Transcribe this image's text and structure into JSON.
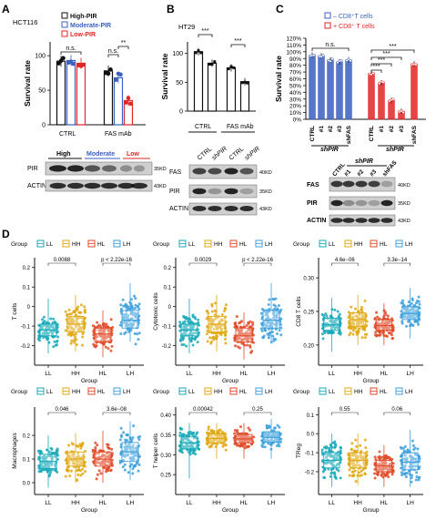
{
  "panels": [
    {
      "letter": "A",
      "cell_line": "HCT116",
      "legend": [
        {
          "label": "High-PIR",
          "color": "#111111"
        },
        {
          "label": "Moderate-PIR",
          "color": "#3a5fbf"
        },
        {
          "label": "Low-PIR",
          "color": "#e02626"
        }
      ],
      "groups": [
        "CTRL",
        "FAS mAb"
      ],
      "sig": [
        "n.s.",
        "n.s.",
        "**"
      ],
      "blot_header": [
        "High",
        "Moderate",
        "Low"
      ],
      "blot_rows": [
        "PIR",
        "ACTIN"
      ],
      "blot_kd": [
        "35KD",
        "43KD"
      ]
    },
    {
      "letter": "B",
      "cell_line": "HT29",
      "groups": [
        "CTRL",
        "FAS mAb"
      ],
      "sig": [
        "***",
        "***"
      ],
      "blot_lanes": [
        "CTRL",
        "shPIR",
        "CTRL",
        "shPIR"
      ],
      "blot_rows": [
        "FAS",
        "PIR",
        "ACTIN"
      ],
      "blot_kd": [
        "40KD",
        "35KD",
        "43KD"
      ]
    },
    {
      "letter": "C",
      "legend": [
        {
          "label": "– CD8⁺T cells",
          "color": "#3a5fbf"
        },
        {
          "label": "+ CD8⁺ T cells",
          "color": "#e02626"
        }
      ],
      "lanes": [
        "CTRL",
        "#1",
        "#2",
        "#3",
        "shFAS"
      ],
      "lane_group": "shPIR",
      "sig": [
        "n.s.",
        "***",
        "***",
        "***",
        "***"
      ],
      "blot_lanes": [
        "CTRL",
        "#1",
        "#2",
        "#3",
        "shFAS"
      ],
      "blot_rows": [
        "FAS",
        "PIR",
        "ACTIN"
      ],
      "blot_kd": [
        "40KD",
        "35KD",
        "43KD"
      ]
    },
    {
      "letter": "D",
      "group_title": "Group",
      "groups": [
        "LL",
        "HH",
        "HL",
        "LH"
      ],
      "xlabel": "Group"
    }
  ],
  "chart_data": [
    {
      "id": "A",
      "type": "bar",
      "ylabel": "Survival rate",
      "ylim": [
        0,
        120
      ],
      "yticks": [
        0,
        50,
        100
      ],
      "categories": [
        "CTRL",
        "FAS mAb"
      ],
      "series": [
        {
          "name": "High-PIR",
          "values": [
            92,
            78
          ],
          "color": "#111111"
        },
        {
          "name": "Moderate-PIR",
          "values": [
            93,
            68
          ],
          "color": "#3a5fbf"
        },
        {
          "name": "Low-PIR",
          "values": [
            89,
            35
          ],
          "color": "#e02626"
        }
      ]
    },
    {
      "id": "B",
      "type": "bar",
      "ylabel": "Survival rate",
      "ylim": [
        0,
        120
      ],
      "yticks": [
        0,
        50,
        100
      ],
      "categories": [
        "CTRL",
        "shPIR",
        "CTRL",
        "shPIR"
      ],
      "values": [
        103,
        83,
        75,
        51
      ],
      "color": "#111111"
    },
    {
      "id": "C",
      "type": "bar",
      "ylabel": "Survival rate",
      "ylim": [
        0,
        120
      ],
      "yticks": [
        0,
        10,
        20,
        30,
        40,
        50,
        60,
        70,
        80,
        90,
        100,
        110,
        120
      ],
      "ytick_labels": [
        "0%",
        "10%",
        "20%",
        "30%",
        "40%",
        "50%",
        "60%",
        "70%",
        "80%",
        "90%",
        "100%",
        "110%",
        "120%"
      ],
      "categories": [
        "CTRL",
        "#1",
        "#2",
        "#3",
        "shFAS"
      ],
      "series": [
        {
          "name": "– CD8⁺T cells",
          "values": [
            95,
            94,
            88,
            85,
            88
          ],
          "color": "#3a5fbf"
        },
        {
          "name": "+ CD8⁺ T cells",
          "values": [
            68,
            54,
            28,
            12,
            82
          ],
          "color": "#e02626"
        }
      ]
    },
    {
      "id": "D1",
      "type": "box",
      "ylabel": "T cells",
      "ylim": [
        -0.3,
        0.25
      ],
      "yticks": [
        -0.2,
        -0.1,
        0.0,
        0.1,
        0.2
      ],
      "ytick_labels": [
        "-0.2",
        "-0.1",
        "0",
        "0.1",
        "0.2"
      ],
      "boxes": [
        {
          "group": "LL",
          "q1": -0.15,
          "median": -0.12,
          "q3": -0.09,
          "lo": -0.24,
          "hi": 0.04
        },
        {
          "group": "HH",
          "q1": -0.13,
          "median": -0.09,
          "q3": -0.05,
          "lo": -0.23,
          "hi": 0.06
        },
        {
          "group": "HL",
          "q1": -0.18,
          "median": -0.14,
          "q3": -0.11,
          "lo": -0.26,
          "hi": -0.02
        },
        {
          "group": "LH",
          "q1": -0.11,
          "median": -0.07,
          "q3": -0.02,
          "lo": -0.18,
          "hi": 0.12
        }
      ],
      "annotations": [
        {
          "from": "LL",
          "to": "HH",
          "label": "0.0088"
        },
        {
          "from": "HL",
          "to": "LH",
          "label": "p < 2.22e-16"
        }
      ]
    },
    {
      "id": "D2",
      "type": "box",
      "ylabel": "Cytotoxic cells",
      "ylim": [
        -0.3,
        0.25
      ],
      "yticks": [
        -0.2,
        -0.1,
        0.0,
        0.1,
        0.2
      ],
      "ytick_labels": [
        "-0.2",
        "-0.1",
        "0",
        "0.1",
        "0.2"
      ],
      "boxes": [
        {
          "group": "LL",
          "q1": -0.15,
          "median": -0.12,
          "q3": -0.09,
          "lo": -0.24,
          "hi": 0.04
        },
        {
          "group": "HH",
          "q1": -0.13,
          "median": -0.09,
          "q3": -0.05,
          "lo": -0.23,
          "hi": 0.06
        },
        {
          "group": "HL",
          "q1": -0.18,
          "median": -0.15,
          "q3": -0.11,
          "lo": -0.27,
          "hi": -0.03
        },
        {
          "group": "LH",
          "q1": -0.11,
          "median": -0.07,
          "q3": -0.02,
          "lo": -0.18,
          "hi": 0.12
        }
      ],
      "annotations": [
        {
          "from": "LL",
          "to": "HH",
          "label": "0.0029"
        },
        {
          "from": "HL",
          "to": "LH",
          "label": "p < 2.22e-16"
        }
      ]
    },
    {
      "id": "D3",
      "type": "box",
      "ylabel": "CD8 T cells",
      "ylim": [
        0.17,
        0.33
      ],
      "yticks": [
        0.2,
        0.25,
        0.3
      ],
      "ytick_labels": [
        "0.20",
        "0.25",
        "0.30"
      ],
      "boxes": [
        {
          "group": "LL",
          "q1": 0.222,
          "median": 0.23,
          "q3": 0.24,
          "lo": 0.19,
          "hi": 0.27
        },
        {
          "group": "HH",
          "q1": 0.228,
          "median": 0.238,
          "q3": 0.248,
          "lo": 0.2,
          "hi": 0.275
        },
        {
          "group": "HL",
          "q1": 0.222,
          "median": 0.229,
          "q3": 0.238,
          "lo": 0.2,
          "hi": 0.262
        },
        {
          "group": "LH",
          "q1": 0.238,
          "median": 0.247,
          "q3": 0.257,
          "lo": 0.21,
          "hi": 0.285
        }
      ],
      "annotations": [
        {
          "from": "LL",
          "to": "HH",
          "label": "4.6e−06"
        },
        {
          "from": "HL",
          "to": "LH",
          "label": "3.3e−14"
        }
      ]
    },
    {
      "id": "D4",
      "type": "box",
      "ylabel": "Macrophages",
      "ylim": [
        -0.05,
        0.32
      ],
      "yticks": [
        0.0,
        0.1,
        0.2
      ],
      "ytick_labels": [
        "0.0",
        "0.1",
        "0.2"
      ],
      "boxes": [
        {
          "group": "LL",
          "q1": 0.06,
          "median": 0.09,
          "q3": 0.12,
          "lo": -0.02,
          "hi": 0.2
        },
        {
          "group": "HH",
          "q1": 0.07,
          "median": 0.1,
          "q3": 0.13,
          "lo": 0.0,
          "hi": 0.21
        },
        {
          "group": "HL",
          "q1": 0.07,
          "median": 0.1,
          "q3": 0.13,
          "lo": 0.0,
          "hi": 0.22
        },
        {
          "group": "LH",
          "q1": 0.09,
          "median": 0.13,
          "q3": 0.17,
          "lo": 0.01,
          "hi": 0.26
        }
      ],
      "annotations": [
        {
          "from": "LL",
          "to": "HH",
          "label": "0.046"
        },
        {
          "from": "HL",
          "to": "LH",
          "label": "3.6e−08"
        }
      ]
    },
    {
      "id": "D5",
      "type": "box",
      "ylabel": "T helper cells",
      "ylim": [
        0.2,
        0.42
      ],
      "yticks": [
        0.25,
        0.3,
        0.35,
        0.4
      ],
      "ytick_labels": [
        "0.25",
        "0.30",
        "0.35",
        "0.40"
      ],
      "boxes": [
        {
          "group": "LL",
          "q1": 0.315,
          "median": 0.33,
          "q3": 0.345,
          "lo": 0.24,
          "hi": 0.38
        },
        {
          "group": "HH",
          "q1": 0.33,
          "median": 0.341,
          "q3": 0.352,
          "lo": 0.29,
          "hi": 0.38
        },
        {
          "group": "HL",
          "q1": 0.33,
          "median": 0.34,
          "q3": 0.351,
          "lo": 0.29,
          "hi": 0.38
        },
        {
          "group": "LH",
          "q1": 0.332,
          "median": 0.344,
          "q3": 0.358,
          "lo": 0.29,
          "hi": 0.39
        }
      ],
      "annotations": [
        {
          "from": "LL",
          "to": "HH",
          "label": "0.00042"
        },
        {
          "from": "HL",
          "to": "LH",
          "label": "0.25"
        }
      ]
    },
    {
      "id": "D6",
      "type": "box",
      "ylabel": "TReg",
      "ylim": [
        -0.32,
        0.14
      ],
      "yticks": [
        -0.2,
        -0.1,
        0.0,
        0.1
      ],
      "ytick_labels": [
        "-0.2",
        "-0.1",
        "0.0",
        "0.1"
      ],
      "boxes": [
        {
          "group": "LL",
          "q1": -0.18,
          "median": -0.14,
          "q3": -0.1,
          "lo": -0.28,
          "hi": 0.0
        },
        {
          "group": "HH",
          "q1": -0.18,
          "median": -0.14,
          "q3": -0.1,
          "lo": -0.27,
          "hi": 0.0
        },
        {
          "group": "HL",
          "q1": -0.2,
          "median": -0.17,
          "q3": -0.14,
          "lo": -0.28,
          "hi": -0.06
        },
        {
          "group": "LH",
          "q1": -0.19,
          "median": -0.15,
          "q3": -0.1,
          "lo": -0.28,
          "hi": 0.02
        }
      ],
      "annotations": [
        {
          "from": "LL",
          "to": "HH",
          "label": "0.55"
        },
        {
          "from": "HL",
          "to": "LH",
          "label": "0.06"
        }
      ]
    }
  ],
  "colors": {
    "LL": "#17a9b8",
    "HH": "#e0a814",
    "HL": "#e04a28",
    "LH": "#3ea0dc"
  }
}
